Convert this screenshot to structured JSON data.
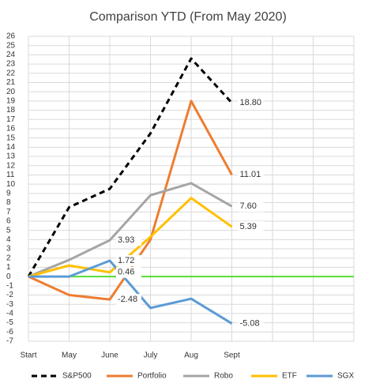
{
  "chart_data": {
    "type": "line",
    "title": "Comparison YTD (From May 2020)",
    "categories": [
      "Start",
      "May",
      "June",
      "July",
      "Aug",
      "Sept",
      null,
      null,
      null
    ],
    "ylim": [
      -7,
      26
    ],
    "yticks": [
      -7,
      -6,
      -5,
      -4,
      -3,
      -2,
      -1,
      0,
      1,
      2,
      3,
      4,
      5,
      6,
      7,
      8,
      9,
      10,
      11,
      12,
      13,
      14,
      15,
      16,
      17,
      18,
      19,
      20,
      21,
      22,
      23,
      24,
      25,
      26
    ],
    "grid": true,
    "reference_line": {
      "value": 0,
      "color": "#55dd33"
    },
    "legend": "bottom",
    "series": [
      {
        "name": "S&P500",
        "color": "#000000",
        "dashed": true,
        "values": [
          0,
          7.5,
          9.5,
          15.5,
          23.6,
          18.8,
          null,
          null,
          null
        ],
        "value_labels": [
          null,
          null,
          null,
          null,
          null,
          "18.80",
          null,
          null,
          null
        ]
      },
      {
        "name": "Portfolio",
        "color": "#ed7d31",
        "values": [
          0,
          -2,
          -2.48,
          4,
          19,
          11.01,
          null,
          null,
          null
        ],
        "value_labels": [
          null,
          null,
          "-2.48",
          null,
          null,
          "11.01",
          null,
          null,
          null
        ]
      },
      {
        "name": "Robo",
        "color": "#a5a5a5",
        "values": [
          0,
          1.8,
          3.93,
          8.8,
          10.1,
          7.6,
          null,
          null,
          null
        ],
        "value_labels": [
          null,
          null,
          "3.93",
          null,
          null,
          "7.60",
          null,
          null,
          null
        ]
      },
      {
        "name": "ETF",
        "color": "#ffc000",
        "values": [
          0,
          1.2,
          0.46,
          4.3,
          8.5,
          5.39,
          null,
          null,
          null
        ],
        "value_labels": [
          null,
          null,
          "0.46",
          null,
          null,
          "5.39",
          null,
          null,
          null
        ]
      },
      {
        "name": "SGX",
        "color": "#5b9bd5",
        "values": [
          0,
          0,
          1.72,
          -3.4,
          -2.4,
          -5.08,
          null,
          null,
          null
        ],
        "value_labels": [
          null,
          null,
          "1.72",
          null,
          null,
          "-5.08",
          null,
          null,
          null
        ]
      }
    ]
  }
}
